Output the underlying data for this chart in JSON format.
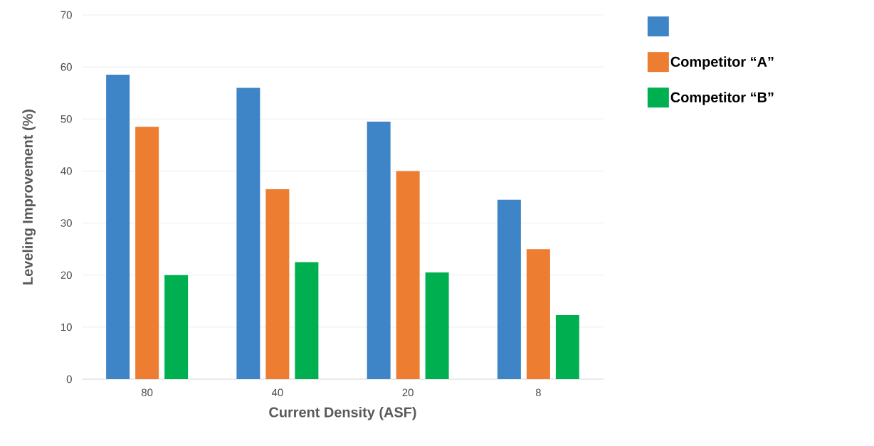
{
  "chart_data": {
    "type": "bar",
    "xlabel": "Current Density (ASF)",
    "ylabel": "Leveling Improvement (%)",
    "categories": [
      "80",
      "40",
      "20",
      "8"
    ],
    "series": [
      {
        "color": "#3d85c6",
        "values": [
          58.5,
          56,
          49.5,
          34.5
        ]
      },
      {
        "name": "Competitor “A”",
        "color": "#ed7d31",
        "values": [
          48.5,
          36.5,
          40,
          25
        ]
      },
      {
        "name": "Competitor “B”",
        "color": "#00b050",
        "values": [
          20,
          22.5,
          20.5,
          12.3
        ]
      }
    ],
    "ylim": [
      0,
      70
    ],
    "yticks": [
      0,
      10,
      20,
      30,
      40,
      50,
      60,
      70
    ],
    "grid": "y",
    "legend": "right"
  }
}
